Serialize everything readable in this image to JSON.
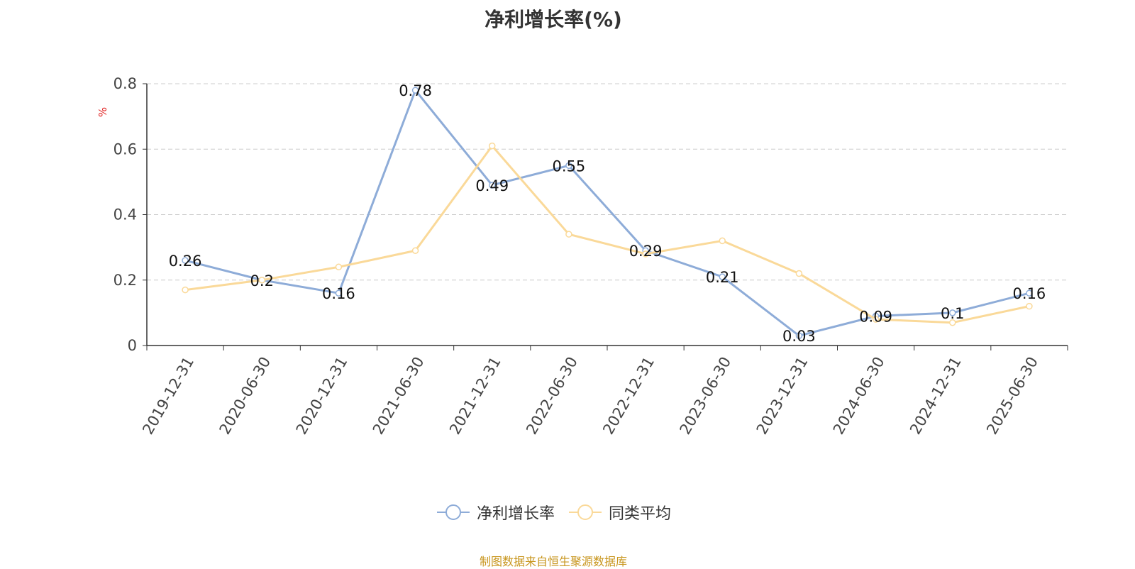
{
  "chart_data": {
    "type": "line",
    "title": "净利增长率(%)",
    "ylabel": "%",
    "xlabel": "",
    "categories": [
      "2019-12-31",
      "2020-06-30",
      "2020-12-31",
      "2021-06-30",
      "2021-12-31",
      "2022-06-30",
      "2022-12-31",
      "2023-06-30",
      "2023-12-31",
      "2024-06-30",
      "2024-12-31",
      "2025-06-30"
    ],
    "ylim": [
      0,
      0.8
    ],
    "yticks": [
      "0",
      "0.2",
      "0.4",
      "0.6",
      "0.8"
    ],
    "grid": true,
    "legend_position": "bottom",
    "series": [
      {
        "name": "净利增长率",
        "color": "#8eacd8",
        "show_labels": true,
        "values": [
          0.26,
          0.2,
          0.16,
          0.78,
          0.49,
          0.55,
          0.29,
          0.21,
          0.03,
          0.09,
          0.1,
          0.16
        ],
        "labels": [
          "0.26",
          "0.2",
          "0.16",
          "0.78",
          "0.49",
          "0.55",
          "0.29",
          "0.21",
          "0.03",
          "0.09",
          "0.1",
          "0.16"
        ]
      },
      {
        "name": "同类平均",
        "color": "#fad999",
        "show_labels": false,
        "values": [
          0.17,
          0.2,
          0.24,
          0.29,
          0.61,
          0.34,
          0.28,
          0.32,
          0.22,
          0.08,
          0.07,
          0.12
        ]
      }
    ]
  },
  "source_note": "制图数据来自恒生聚源数据库"
}
